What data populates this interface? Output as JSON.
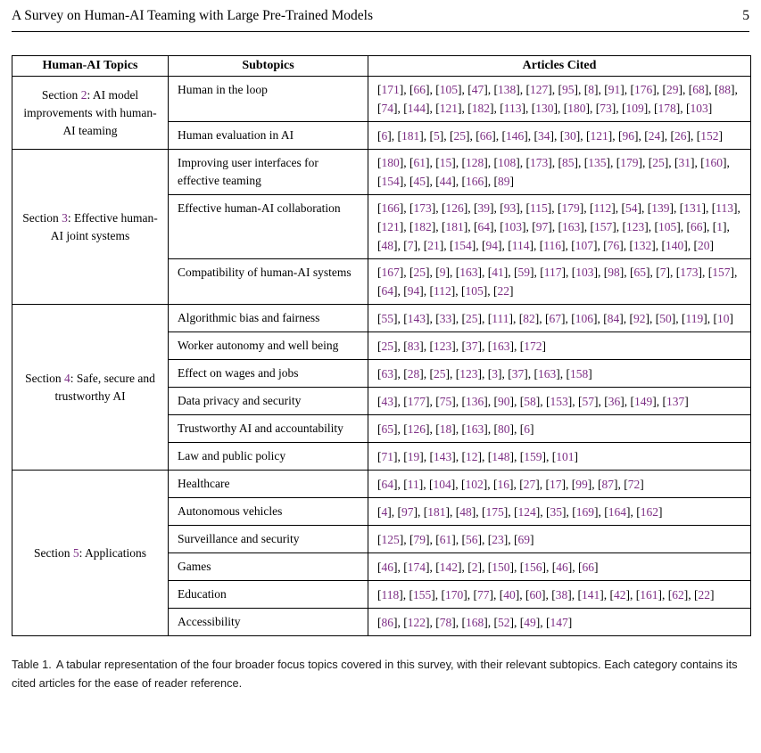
{
  "page": {
    "running_title": "A Survey on Human-AI Teaming with Large Pre-Trained Models",
    "page_number": "5"
  },
  "colors": {
    "citation_purple": "#7d2f85"
  },
  "table": {
    "headers": [
      "Human-AI Topics",
      "Subtopics",
      "Articles Cited"
    ],
    "section_prefix": "Section ",
    "sections": [
      {
        "number": "2",
        "title_rest": ": AI model improvements with human-AI teaming",
        "rows": [
          {
            "subtopic": "Human in the loop",
            "citations": [
              171,
              66,
              105,
              47,
              138,
              127,
              95,
              8,
              91,
              176,
              29,
              68,
              88,
              74,
              144,
              121,
              182,
              113,
              130,
              180,
              73,
              109,
              178,
              103
            ]
          },
          {
            "subtopic": "Human evaluation in AI",
            "citations": [
              6,
              181,
              5,
              25,
              66,
              146,
              34,
              30,
              121,
              96,
              24,
              26,
              152
            ]
          }
        ]
      },
      {
        "number": "3",
        "title_rest": ": Effective human-AI joint systems",
        "rows": [
          {
            "subtopic": "Improving user interfaces for effective teaming",
            "citations": [
              180,
              61,
              15,
              128,
              108,
              173,
              85,
              135,
              179,
              25,
              31,
              160,
              154,
              45,
              44,
              166,
              89
            ]
          },
          {
            "subtopic": "Effective human-AI collaboration",
            "citations": [
              166,
              173,
              126,
              39,
              93,
              115,
              179,
              112,
              54,
              139,
              131,
              113,
              121,
              182,
              181,
              64,
              103,
              97,
              163,
              157,
              123,
              105,
              66,
              1,
              48,
              7,
              21,
              154,
              94,
              114,
              116,
              107,
              76,
              132,
              140,
              20
            ]
          },
          {
            "subtopic": "Compatibility of human-AI systems",
            "citations": [
              167,
              25,
              9,
              163,
              41,
              59,
              117,
              103,
              98,
              65,
              7,
              173,
              157,
              64,
              94,
              112,
              105,
              22
            ]
          }
        ]
      },
      {
        "number": "4",
        "title_rest": ": Safe, secure and trustworthy AI",
        "rows": [
          {
            "subtopic": "Algorithmic bias and fairness",
            "citations": [
              55,
              143,
              33,
              25,
              111,
              82,
              67,
              106,
              84,
              92,
              50,
              119,
              10
            ]
          },
          {
            "subtopic": "Worker autonomy and well being",
            "citations": [
              25,
              83,
              123,
              37,
              163,
              172
            ]
          },
          {
            "subtopic": "Effect on wages and jobs",
            "citations": [
              63,
              28,
              25,
              123,
              3,
              37,
              163,
              158
            ]
          },
          {
            "subtopic": "Data privacy and security",
            "citations": [
              43,
              177,
              75,
              136,
              90,
              58,
              153,
              57,
              36,
              149,
              137
            ]
          },
          {
            "subtopic": "Trustworthy AI and accountability",
            "citations": [
              65,
              126,
              18,
              163,
              80,
              6
            ]
          },
          {
            "subtopic": "Law and public policy",
            "citations": [
              71,
              19,
              143,
              12,
              148,
              159,
              101
            ]
          }
        ]
      },
      {
        "number": "5",
        "title_rest": ": Applications",
        "rows": [
          {
            "subtopic": "Healthcare",
            "citations": [
              64,
              11,
              104,
              102,
              16,
              27,
              17,
              99,
              87,
              72
            ]
          },
          {
            "subtopic": "Autonomous vehicles",
            "citations": [
              4,
              97,
              181,
              48,
              175,
              124,
              35,
              169,
              164,
              162
            ]
          },
          {
            "subtopic": "Surveillance and security",
            "citations": [
              125,
              79,
              61,
              56,
              23,
              69
            ]
          },
          {
            "subtopic": "Games",
            "citations": [
              46,
              174,
              142,
              2,
              150,
              156,
              46,
              66
            ]
          },
          {
            "subtopic": "Education",
            "citations": [
              118,
              155,
              170,
              77,
              40,
              60,
              38,
              141,
              42,
              161,
              62,
              22
            ]
          },
          {
            "subtopic": "Accessibility",
            "citations": [
              86,
              122,
              78,
              168,
              52,
              49,
              147
            ]
          }
        ]
      }
    ]
  },
  "caption": {
    "label": "Table 1.",
    "text": "A tabular representation of the four broader focus topics covered in this survey, with their relevant subtopics. Each category contains its cited articles for the ease of reader reference."
  }
}
